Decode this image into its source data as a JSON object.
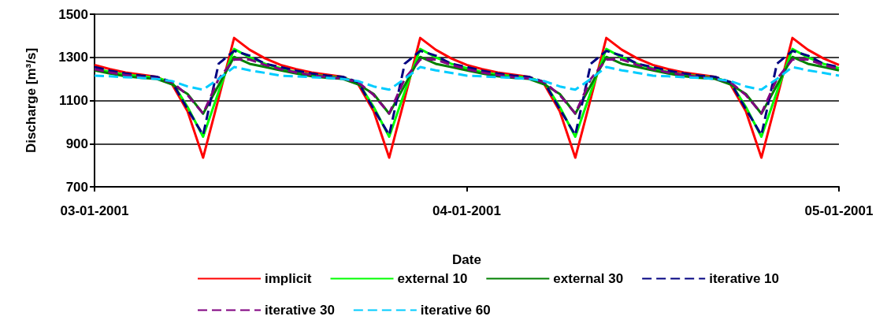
{
  "chart_data": {
    "type": "line",
    "xlabel": "Date",
    "ylabel": "Discharge [m³/s]",
    "x": [
      "2001-01-03T00:00",
      "2001-01-03T01:00",
      "2001-01-03T02:00",
      "2001-01-03T03:00",
      "2001-01-03T04:00",
      "2001-01-03T05:00",
      "2001-01-03T06:00",
      "2001-01-03T07:00",
      "2001-01-03T08:00",
      "2001-01-03T09:00",
      "2001-01-03T10:00",
      "2001-01-03T11:00",
      "2001-01-03T12:00",
      "2001-01-03T13:00",
      "2001-01-03T14:00",
      "2001-01-03T15:00",
      "2001-01-03T16:00",
      "2001-01-03T17:00",
      "2001-01-03T18:00",
      "2001-01-03T19:00",
      "2001-01-03T20:00",
      "2001-01-03T21:00",
      "2001-01-03T22:00",
      "2001-01-03T23:00",
      "2001-01-04T00:00",
      "2001-01-04T01:00",
      "2001-01-04T02:00",
      "2001-01-04T03:00",
      "2001-01-04T04:00",
      "2001-01-04T05:00",
      "2001-01-04T06:00",
      "2001-01-04T07:00",
      "2001-01-04T08:00",
      "2001-01-04T09:00",
      "2001-01-04T10:00",
      "2001-01-04T11:00",
      "2001-01-04T12:00",
      "2001-01-04T13:00",
      "2001-01-04T14:00",
      "2001-01-04T15:00",
      "2001-01-04T16:00",
      "2001-01-04T17:00",
      "2001-01-04T18:00",
      "2001-01-04T19:00",
      "2001-01-04T20:00",
      "2001-01-04T21:00",
      "2001-01-04T22:00",
      "2001-01-04T23:00",
      "2001-01-05T00:00"
    ],
    "series": [
      {
        "name": "implicit",
        "color": "#ff0000",
        "line_style": "solid",
        "values": [
          1265,
          1245,
          1230,
          1220,
          1210,
          1175,
          1050,
          835,
          1110,
          1390,
          1335,
          1295,
          1265,
          1245,
          1230,
          1220,
          1210,
          1175,
          1050,
          835,
          1110,
          1390,
          1335,
          1295,
          1265,
          1245,
          1230,
          1220,
          1210,
          1175,
          1050,
          835,
          1110,
          1390,
          1335,
          1295,
          1265,
          1245,
          1230,
          1220,
          1210,
          1175,
          1050,
          835,
          1110,
          1390,
          1335,
          1295,
          1265
        ]
      },
      {
        "name": "external 10",
        "color": "#00ff00",
        "line_style": "solid",
        "values": [
          1250,
          1232,
          1220,
          1212,
          1205,
          1185,
          1070,
          932,
          1140,
          1339,
          1300,
          1270,
          1250,
          1232,
          1220,
          1212,
          1205,
          1185,
          1070,
          932,
          1140,
          1339,
          1300,
          1270,
          1250,
          1232,
          1220,
          1212,
          1205,
          1185,
          1070,
          932,
          1140,
          1339,
          1300,
          1270,
          1250,
          1232,
          1220,
          1212,
          1205,
          1185,
          1070,
          932,
          1140,
          1339,
          1300,
          1270,
          1250
        ]
      },
      {
        "name": "external 30",
        "color": "#008000",
        "line_style": "solid",
        "values": [
          1240,
          1225,
          1212,
          1205,
          1200,
          1175,
          1130,
          1039,
          1170,
          1302,
          1270,
          1255,
          1240,
          1225,
          1212,
          1205,
          1200,
          1175,
          1130,
          1039,
          1170,
          1302,
          1270,
          1255,
          1240,
          1225,
          1212,
          1205,
          1200,
          1175,
          1130,
          1039,
          1170,
          1302,
          1270,
          1255,
          1240,
          1225,
          1212,
          1205,
          1200,
          1175,
          1130,
          1039,
          1170,
          1302,
          1270,
          1255,
          1240
        ]
      },
      {
        "name": "iterative 10",
        "color": "#000080",
        "line_style": "dashed",
        "values": [
          1255,
          1238,
          1225,
          1215,
          1210,
          1185,
          1060,
          940,
          1270,
          1330,
          1308,
          1270,
          1255,
          1238,
          1225,
          1215,
          1210,
          1185,
          1060,
          940,
          1270,
          1330,
          1308,
          1270,
          1255,
          1238,
          1225,
          1215,
          1210,
          1185,
          1060,
          940,
          1270,
          1330,
          1308,
          1270,
          1255,
          1238,
          1225,
          1215,
          1210,
          1185,
          1060,
          940,
          1270,
          1330,
          1308,
          1270,
          1255
        ]
      },
      {
        "name": "iterative 30",
        "color": "#800080",
        "line_style": "dashed",
        "values": [
          1245,
          1230,
          1218,
          1208,
          1202,
          1185,
          1125,
          1040,
          1200,
          1290,
          1290,
          1265,
          1245,
          1230,
          1218,
          1208,
          1202,
          1185,
          1125,
          1040,
          1200,
          1290,
          1290,
          1265,
          1245,
          1230,
          1218,
          1208,
          1202,
          1185,
          1125,
          1040,
          1200,
          1290,
          1290,
          1265,
          1245,
          1230,
          1218,
          1208,
          1202,
          1185,
          1125,
          1040,
          1200,
          1290,
          1290,
          1265,
          1245
        ]
      },
      {
        "name": "iterative 60",
        "color": "#00ccff",
        "line_style": "dashed",
        "values": [
          1215,
          1212,
          1208,
          1205,
          1200,
          1190,
          1165,
          1150,
          1200,
          1255,
          1240,
          1228,
          1215,
          1212,
          1208,
          1205,
          1200,
          1190,
          1165,
          1150,
          1200,
          1255,
          1240,
          1228,
          1215,
          1212,
          1208,
          1205,
          1200,
          1190,
          1165,
          1150,
          1200,
          1255,
          1240,
          1228,
          1215,
          1212,
          1208,
          1205,
          1200,
          1190,
          1165,
          1150,
          1200,
          1255,
          1240,
          1228,
          1215
        ]
      }
    ],
    "xlim": [
      "2001-01-03T00:00",
      "2001-01-05T00:00"
    ],
    "xticks": [
      {
        "value": "2001-01-03T00:00",
        "label": "03-01-2001"
      },
      {
        "value": "2001-01-04T00:00",
        "label": "04-01-2001"
      },
      {
        "value": "2001-01-05T00:00",
        "label": "05-01-2001"
      }
    ],
    "ylim": [
      700,
      1500
    ],
    "yticks": [
      700,
      900,
      1100,
      1300,
      1500
    ],
    "grid": "y",
    "legend": "bottom",
    "marker": "none"
  }
}
